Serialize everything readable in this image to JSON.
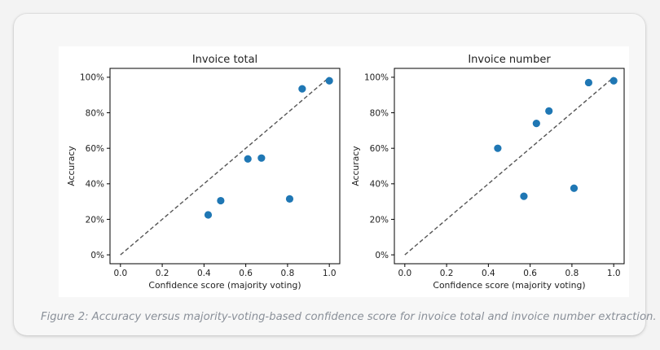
{
  "chart_data": [
    {
      "type": "scatter",
      "title": "Invoice total",
      "xlabel": "Confidence score (majority voting)",
      "ylabel": "Accuracy",
      "xlim": [
        -0.05,
        1.05
      ],
      "ylim": [
        -0.05,
        1.05
      ],
      "x_ticks": [
        0.0,
        0.2,
        0.4,
        0.6,
        0.8,
        1.0
      ],
      "x_tick_labels": [
        "0.0",
        "0.2",
        "0.4",
        "0.6",
        "0.8",
        "1.0"
      ],
      "y_ticks": [
        0,
        0.2,
        0.4,
        0.6,
        0.8,
        1.0
      ],
      "y_tick_labels": [
        "0%",
        "20%",
        "40%",
        "60%",
        "80%",
        "100%"
      ],
      "reference_line": {
        "style": "dashed",
        "from": [
          0,
          0
        ],
        "to": [
          1,
          1
        ]
      },
      "grid": false,
      "points": [
        {
          "x": 0.42,
          "y": 0.225
        },
        {
          "x": 0.48,
          "y": 0.305
        },
        {
          "x": 0.61,
          "y": 0.54
        },
        {
          "x": 0.675,
          "y": 0.545
        },
        {
          "x": 0.81,
          "y": 0.315
        },
        {
          "x": 0.87,
          "y": 0.935
        },
        {
          "x": 1.0,
          "y": 0.98
        }
      ]
    },
    {
      "type": "scatter",
      "title": "Invoice number",
      "xlabel": "Confidence score (majority voting)",
      "ylabel": "Accuracy",
      "xlim": [
        -0.05,
        1.05
      ],
      "ylim": [
        -0.05,
        1.05
      ],
      "x_ticks": [
        0.0,
        0.2,
        0.4,
        0.6,
        0.8,
        1.0
      ],
      "x_tick_labels": [
        "0.0",
        "0.2",
        "0.4",
        "0.6",
        "0.8",
        "1.0"
      ],
      "y_ticks": [
        0,
        0.2,
        0.4,
        0.6,
        0.8,
        1.0
      ],
      "y_tick_labels": [
        "0%",
        "20%",
        "40%",
        "60%",
        "80%",
        "100%"
      ],
      "reference_line": {
        "style": "dashed",
        "from": [
          0,
          0
        ],
        "to": [
          1,
          1
        ]
      },
      "grid": false,
      "points": [
        {
          "x": 0.445,
          "y": 0.6
        },
        {
          "x": 0.57,
          "y": 0.33
        },
        {
          "x": 0.63,
          "y": 0.74
        },
        {
          "x": 0.69,
          "y": 0.81
        },
        {
          "x": 0.81,
          "y": 0.375
        },
        {
          "x": 0.88,
          "y": 0.97
        },
        {
          "x": 1.0,
          "y": 0.98
        }
      ]
    }
  ],
  "colors": {
    "point": "#1f77b4",
    "reference_line": "#555555",
    "axes": "#000000",
    "caption": "#8a9099"
  },
  "caption": "Figure 2: Accuracy versus majority-voting-based confidence score for invoice total and invoice number extraction."
}
